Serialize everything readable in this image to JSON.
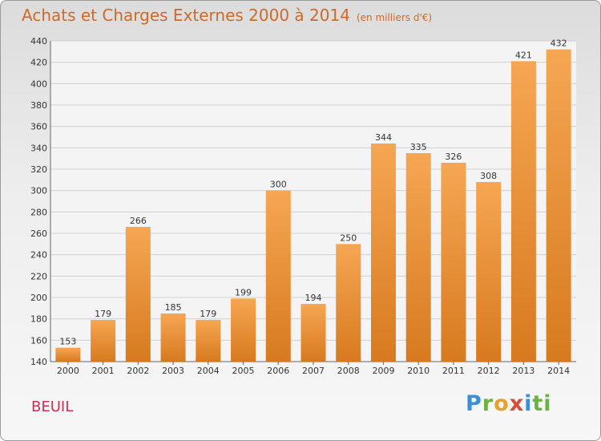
{
  "header": {
    "title": "Achats et Charges Externes 2000 à 2014",
    "unit": "(en milliers d'€)"
  },
  "footer": {
    "commune": "BEUIL",
    "logo": [
      "P",
      "r",
      "o",
      "x",
      "i",
      "ti"
    ]
  },
  "colors": {
    "title": "#cc6a2a",
    "commune": "#cc2f56",
    "bar_top": "#f6a653",
    "bar_bottom": "#d77a1f"
  },
  "chart_data": {
    "type": "bar",
    "title": "Achats et Charges Externes 2000 à 2014",
    "subtitle": "(en milliers d'€)",
    "categories": [
      "2000",
      "2001",
      "2002",
      "2003",
      "2004",
      "2005",
      "2006",
      "2007",
      "2008",
      "2009",
      "2010",
      "2011",
      "2012",
      "2013",
      "2014"
    ],
    "values": [
      153,
      179,
      266,
      185,
      179,
      199,
      300,
      194,
      250,
      344,
      335,
      326,
      308,
      421,
      432
    ],
    "ylim": [
      140,
      440
    ],
    "yticks": [
      140,
      160,
      180,
      200,
      220,
      240,
      260,
      280,
      300,
      320,
      340,
      360,
      380,
      400,
      420,
      440
    ],
    "grid": true,
    "xlabel": "",
    "ylabel": ""
  }
}
